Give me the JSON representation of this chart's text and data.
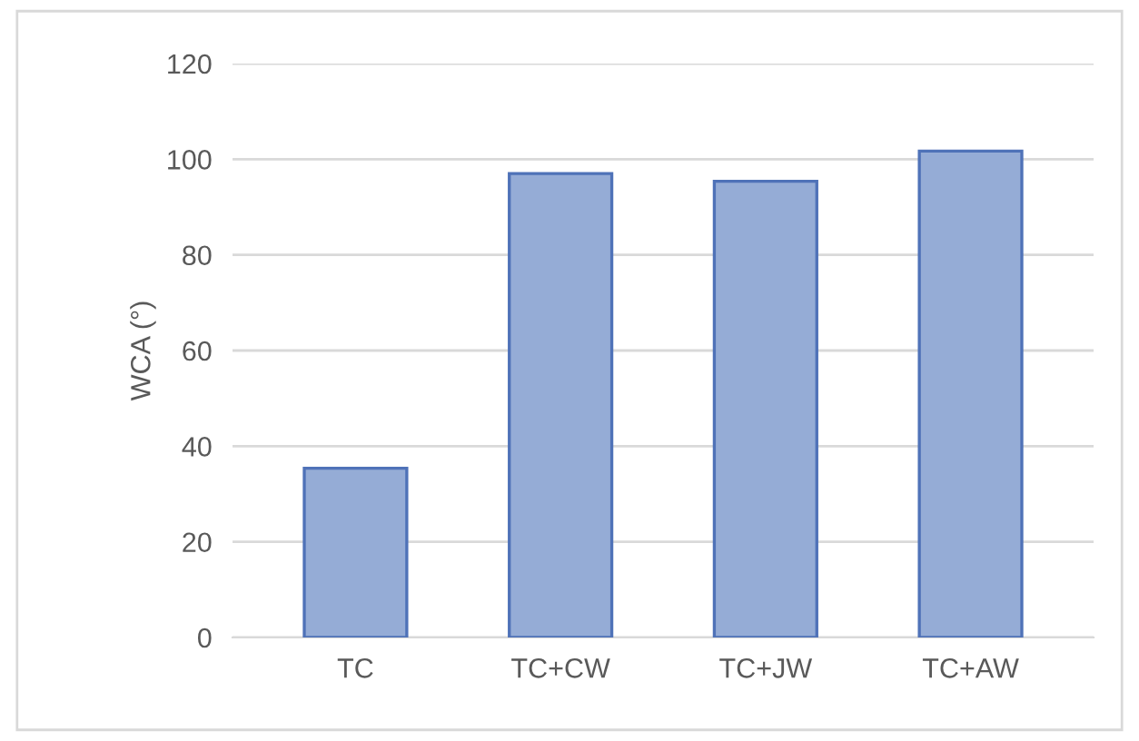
{
  "chart_data": {
    "type": "bar",
    "ylabel": "WCA (°)",
    "categories": [
      "TC",
      "TC+CW",
      "TC+JW",
      "TC+AW"
    ],
    "values": [
      35.4,
      97,
      95.4,
      101.7
    ],
    "color": "#95acd6",
    "ylim": [
      0,
      120
    ],
    "yticks": [
      0,
      20,
      40,
      60,
      80,
      100,
      120
    ],
    "grid": "y"
  }
}
